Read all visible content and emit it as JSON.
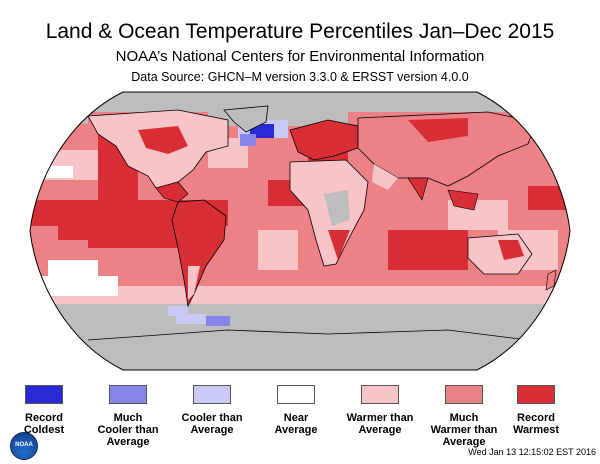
{
  "header": {
    "title": "Land & Ocean Temperature Percentiles Jan–Dec 2015",
    "subtitle": "NOAA’s National Centers for Environmental Information",
    "source": "Data Source: GHCN–M version 3.3.0 & ERSST version 4.0.0"
  },
  "legend": [
    {
      "label": "Record\nColdest",
      "color": "#2a2ad4"
    },
    {
      "label": "Much\nCooler than\nAverage",
      "color": "#8686ea"
    },
    {
      "label": "Cooler than\nAverage",
      "color": "#c9c9f6"
    },
    {
      "label": "Near\nAverage",
      "color": "#ffffff"
    },
    {
      "label": "Warmer than\nAverage",
      "color": "#f9c4c7"
    },
    {
      "label": "Much\nWarmer than\nAverage",
      "color": "#ec8286"
    },
    {
      "label": "Record\nWarmest",
      "color": "#d72f35"
    }
  ],
  "colors": {
    "no_data": "#bdbdbd",
    "ocean_base": "#ec8286"
  },
  "logo": {
    "text": "NOAA",
    "icon": "noaa-logo-icon"
  },
  "timestamp": "Wed Jan 13 12:15:02 EST 2016"
}
